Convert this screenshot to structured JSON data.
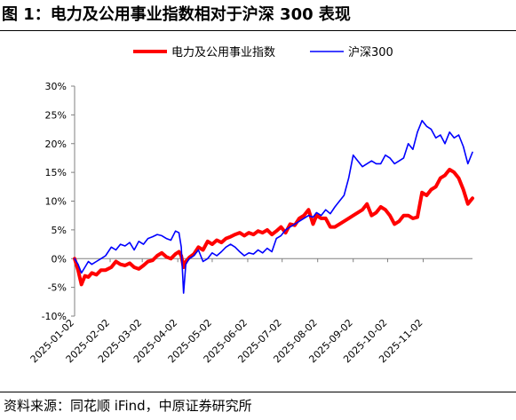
{
  "figure": {
    "title": "图 1：电力及公用事业指数相对于沪深 300 表现",
    "source": "资料来源：同花顺 iFind，中原证券研究所"
  },
  "colors": {
    "series_utility": "#ff0000",
    "series_csi300": "#0000ff",
    "axis": "#808080"
  },
  "chart_data": {
    "type": "line",
    "title": "",
    "xlabel": "",
    "ylabel": "",
    "ylim": [
      -10,
      30
    ],
    "yticks": [
      -10,
      -5,
      0,
      5,
      10,
      15,
      20,
      25,
      30
    ],
    "ytick_labels": [
      "-10%",
      "-5%",
      "0%",
      "5%",
      "10%",
      "15%",
      "20%",
      "25%",
      "30%"
    ],
    "xlim": [
      "2025-01-02",
      "2025-12-15"
    ],
    "xticks": [
      "2025-01-02",
      "2025-02-02",
      "2025-03-02",
      "2025-04-02",
      "2025-05-02",
      "2025-06-02",
      "2025-07-02",
      "2025-08-02",
      "2025-09-02",
      "2025-10-02",
      "2025-11-02"
    ],
    "grid": false,
    "legend": "top-center",
    "series": [
      {
        "name": "电力及公用事业指数",
        "x": [
          "2025-01-02",
          "2025-01-05",
          "2025-01-08",
          "2025-01-11",
          "2025-01-14",
          "2025-01-17",
          "2025-01-21",
          "2025-01-25",
          "2025-01-29",
          "2025-02-03",
          "2025-02-07",
          "2025-02-11",
          "2025-02-15",
          "2025-02-19",
          "2025-02-23",
          "2025-02-27",
          "2025-03-03",
          "2025-03-07",
          "2025-03-11",
          "2025-03-15",
          "2025-03-19",
          "2025-03-23",
          "2025-03-27",
          "2025-03-31",
          "2025-04-03",
          "2025-04-05",
          "2025-04-07",
          "2025-04-09",
          "2025-04-12",
          "2025-04-16",
          "2025-04-20",
          "2025-04-24",
          "2025-04-28",
          "2025-05-02",
          "2025-05-06",
          "2025-05-10",
          "2025-05-14",
          "2025-05-18",
          "2025-05-22",
          "2025-05-26",
          "2025-05-30",
          "2025-06-03",
          "2025-06-07",
          "2025-06-11",
          "2025-06-15",
          "2025-06-19",
          "2025-06-23",
          "2025-06-27",
          "2025-07-01",
          "2025-07-05",
          "2025-07-09",
          "2025-07-13",
          "2025-07-17",
          "2025-07-21",
          "2025-07-25",
          "2025-07-29",
          "2025-08-01",
          "2025-08-05",
          "2025-08-09",
          "2025-08-13",
          "2025-08-17",
          "2025-08-21",
          "2025-08-25",
          "2025-08-29",
          "2025-09-02",
          "2025-09-06",
          "2025-09-10",
          "2025-09-14",
          "2025-09-18",
          "2025-09-22",
          "2025-09-26",
          "2025-09-30",
          "2025-10-04",
          "2025-10-08",
          "2025-10-12",
          "2025-10-16",
          "2025-10-20",
          "2025-10-24",
          "2025-10-28",
          "2025-11-01",
          "2025-11-05",
          "2025-11-09",
          "2025-11-13",
          "2025-11-17",
          "2025-11-21",
          "2025-11-25",
          "2025-11-29",
          "2025-12-03",
          "2025-12-07",
          "2025-12-11",
          "2025-12-15"
        ],
        "values": [
          0,
          -2,
          -4.5,
          -3,
          -3.2,
          -2.5,
          -2.8,
          -2,
          -2,
          -1.5,
          -0.5,
          -1,
          -1.2,
          -0.8,
          -1.5,
          -1.8,
          -1.2,
          -0.5,
          -0.3,
          0.5,
          1,
          0.3,
          0,
          0.8,
          1.2,
          0.5,
          -1.5,
          -0.5,
          0.2,
          0.8,
          2,
          1.5,
          3,
          2.5,
          3.2,
          2.8,
          3.5,
          3.8,
          4.2,
          4.5,
          4,
          4.5,
          4.2,
          4.8,
          4.5,
          5,
          4.2,
          4.8,
          5.5,
          4.5,
          6,
          5.8,
          7,
          7.5,
          8.5,
          6,
          7.5,
          7,
          7,
          5.5,
          5.5,
          6,
          6.5,
          7,
          7.5,
          8,
          8.5,
          9.5,
          7.5,
          8,
          9,
          8.5,
          7.5,
          6,
          6.5,
          7.5,
          7.5,
          7,
          7.2,
          11.5,
          11,
          12,
          12.5,
          14,
          14.5,
          15.5,
          15,
          14,
          12,
          9.5,
          10.5
        ]
      },
      {
        "name": "沪深300",
        "x": [
          "2025-01-02",
          "2025-01-05",
          "2025-01-08",
          "2025-01-11",
          "2025-01-14",
          "2025-01-17",
          "2025-01-21",
          "2025-01-25",
          "2025-01-29",
          "2025-02-03",
          "2025-02-07",
          "2025-02-11",
          "2025-02-15",
          "2025-02-19",
          "2025-02-23",
          "2025-02-27",
          "2025-03-03",
          "2025-03-07",
          "2025-03-11",
          "2025-03-15",
          "2025-03-19",
          "2025-03-23",
          "2025-03-27",
          "2025-03-31",
          "2025-04-03",
          "2025-04-05",
          "2025-04-07",
          "2025-04-09",
          "2025-04-12",
          "2025-04-16",
          "2025-04-20",
          "2025-04-24",
          "2025-04-28",
          "2025-05-02",
          "2025-05-06",
          "2025-05-10",
          "2025-05-14",
          "2025-05-18",
          "2025-05-22",
          "2025-05-26",
          "2025-05-30",
          "2025-06-03",
          "2025-06-07",
          "2025-06-11",
          "2025-06-15",
          "2025-06-19",
          "2025-06-23",
          "2025-06-27",
          "2025-07-01",
          "2025-07-05",
          "2025-07-09",
          "2025-07-13",
          "2025-07-17",
          "2025-07-21",
          "2025-07-25",
          "2025-07-29",
          "2025-08-01",
          "2025-08-05",
          "2025-08-09",
          "2025-08-13",
          "2025-08-17",
          "2025-08-21",
          "2025-08-25",
          "2025-08-29",
          "2025-09-02",
          "2025-09-06",
          "2025-09-10",
          "2025-09-14",
          "2025-09-18",
          "2025-09-22",
          "2025-09-26",
          "2025-09-30",
          "2025-10-04",
          "2025-10-08",
          "2025-10-12",
          "2025-10-16",
          "2025-10-20",
          "2025-10-24",
          "2025-10-28",
          "2025-11-01",
          "2025-11-05",
          "2025-11-09",
          "2025-11-13",
          "2025-11-17",
          "2025-11-21",
          "2025-11-25",
          "2025-11-29",
          "2025-12-03",
          "2025-12-07",
          "2025-12-11",
          "2025-12-15"
        ],
        "values": [
          0,
          -1,
          -2.5,
          -1.5,
          -0.5,
          -1,
          -0.5,
          0,
          0.5,
          2,
          1.5,
          2.5,
          2.2,
          2.8,
          1.5,
          3,
          2.5,
          3.5,
          3.8,
          4.2,
          4,
          3.5,
          3.2,
          4.8,
          4.5,
          2,
          -6,
          -1,
          0,
          0.5,
          1.5,
          -0.5,
          0,
          1,
          0.5,
          1.2,
          2,
          2.5,
          2,
          1.2,
          0.5,
          1,
          0.8,
          1.5,
          1,
          1.8,
          1.2,
          3.5,
          4,
          5,
          5.5,
          6,
          6.5,
          7,
          7.5,
          7.2,
          8,
          7.5,
          8.5,
          7.8,
          9,
          10,
          11,
          14,
          18,
          17,
          16,
          16.5,
          17,
          16.5,
          16.5,
          18,
          17.5,
          16.5,
          17,
          17.5,
          20,
          19,
          22,
          24,
          23,
          22.5,
          21,
          21.5,
          20,
          22,
          21,
          21.5,
          19.5,
          16.5,
          18.5
        ]
      }
    ]
  }
}
